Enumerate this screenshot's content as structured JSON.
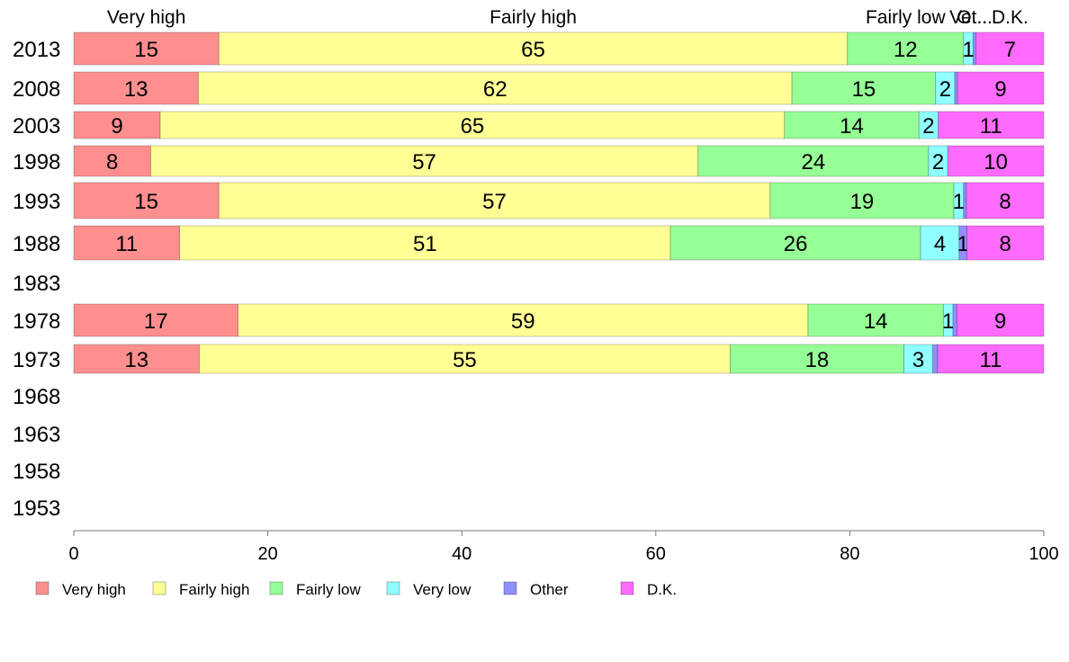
{
  "chart_data": {
    "type": "bar",
    "orientation": "horizontal",
    "stacked": true,
    "categories": [
      "2013",
      "2008",
      "2003",
      "1998",
      "1993",
      "1988",
      "1983",
      "1978",
      "1973",
      "1968",
      "1963",
      "1958",
      "1953"
    ],
    "series": [
      {
        "name": "Very high",
        "color": "#ff8f8f",
        "values": [
          15,
          13,
          9,
          8,
          15,
          11,
          null,
          17,
          13,
          null,
          null,
          null,
          null
        ]
      },
      {
        "name": "Fairly high",
        "color": "#ffff96",
        "values": [
          65,
          62,
          65,
          57,
          57,
          51,
          null,
          59,
          55,
          null,
          null,
          null,
          null
        ]
      },
      {
        "name": "Fairly low",
        "color": "#96ff96",
        "values": [
          12,
          15,
          14,
          24,
          19,
          26,
          null,
          14,
          18,
          null,
          null,
          null,
          null
        ]
      },
      {
        "name": "Very low",
        "color": "#8fffff",
        "values": [
          1,
          2,
          2,
          2,
          1,
          4,
          null,
          1,
          3,
          null,
          null,
          null,
          null
        ]
      },
      {
        "name": "Other",
        "color": "#8f8fff",
        "values": [
          0.3,
          0.3,
          0,
          0,
          0.3,
          0.8,
          null,
          0.4,
          0.5,
          null,
          null,
          null,
          null
        ]
      },
      {
        "name": "D.K.",
        "color": "#ff6bff",
        "values": [
          7,
          9,
          11,
          10,
          8,
          8,
          null,
          9,
          11,
          null,
          null,
          null,
          null
        ]
      }
    ],
    "segment_labels": [
      [
        "15",
        "65",
        "12",
        "1",
        "",
        "7"
      ],
      [
        "13",
        "62",
        "15",
        "2",
        "",
        "9"
      ],
      [
        "9",
        "65",
        "14",
        "2",
        "",
        "11"
      ],
      [
        "8",
        "57",
        "24",
        "2",
        "",
        "10"
      ],
      [
        "15",
        "57",
        "19",
        "1",
        "",
        "8"
      ],
      [
        "11",
        "51",
        "26",
        "4",
        "1",
        "8"
      ],
      [],
      [
        "17",
        "59",
        "14",
        "1",
        "",
        "9"
      ],
      [
        "13",
        "55",
        "18",
        "3",
        "",
        "11"
      ],
      [],
      [],
      [],
      []
    ],
    "top_labels": [
      "Very high",
      "Fairly high",
      "Fairly low",
      "Ve...",
      "Ot...",
      "D.K."
    ],
    "xlim": [
      0,
      100
    ],
    "xticks": [
      0,
      20,
      40,
      60,
      80,
      100
    ],
    "legend_position": "bottom",
    "grid": false
  }
}
